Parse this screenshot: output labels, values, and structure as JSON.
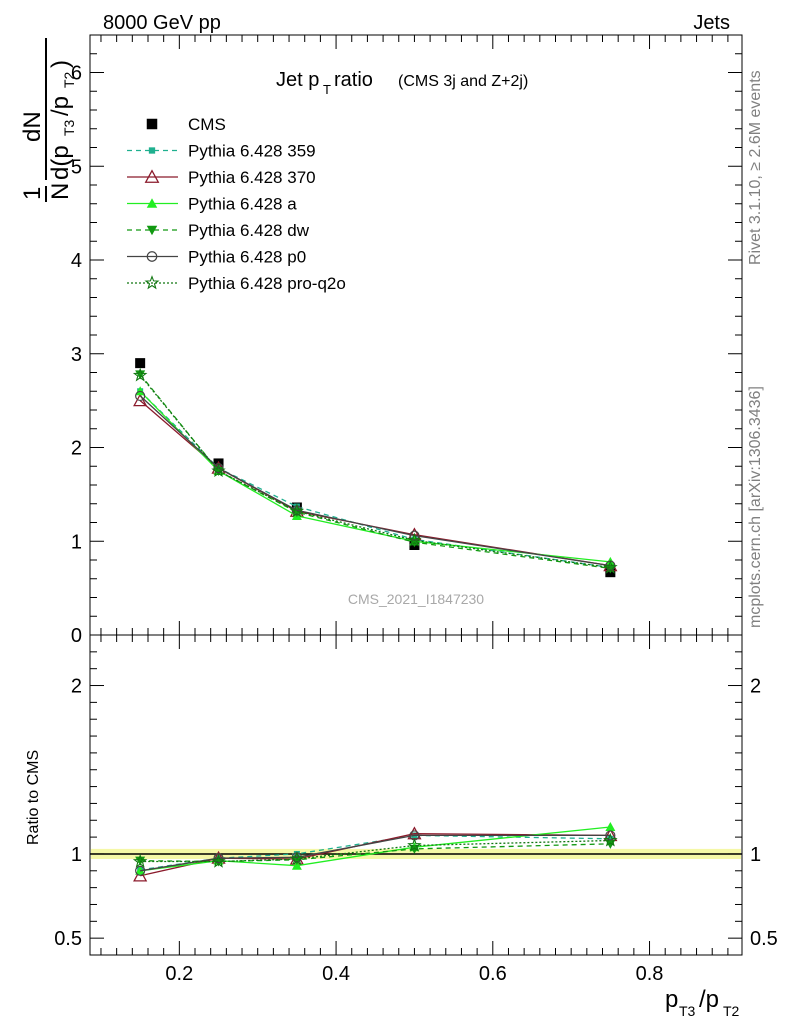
{
  "header": {
    "energy": "8000 GeV pp",
    "category": "Jets",
    "title_main": "Jet p",
    "title_sub": "T",
    "title_rest": " ratio",
    "title_note": "(CMS 3j and Z+2j)",
    "watermark": "CMS_2021_I1847230",
    "rivet_text": "Rivet 3.1.10, ≥ 2.6M events",
    "site_text": "mcplots.cern.ch [arXiv:1306.3436]"
  },
  "colors": {
    "CMS": "#000000",
    "Pythia 6.428 359": "#1fb08f",
    "Pythia 6.428 370": "#8b1a2b",
    "Pythia 6.428 a": "#22ee22",
    "Pythia 6.428 dw": "#119911",
    "Pythia 6.428 p0": "#444444",
    "Pythia 6.428 pro-q2o": "#117711",
    "band": "#f2f58a"
  },
  "chart_data": [
    {
      "type": "line",
      "panel": "main",
      "ylabel": "1/N dN/d(pT3/pT2)",
      "ylim": [
        0,
        6.4
      ],
      "xlim": [
        0.086,
        0.918
      ],
      "y_ticks": [
        0,
        1,
        2,
        3,
        4,
        5,
        6
      ],
      "x": [
        0.15,
        0.25,
        0.35,
        0.5,
        0.75
      ],
      "legend_position": "top-left",
      "series": [
        {
          "name": "CMS",
          "marker": "square",
          "values": [
            2.9,
            1.83,
            1.36,
            0.96,
            0.67
          ]
        },
        {
          "name": "Pythia 6.428 359",
          "marker": "small-square",
          "dash": "dashed",
          "values": [
            2.6,
            1.78,
            1.37,
            1.02,
            0.72
          ]
        },
        {
          "name": "Pythia 6.428 370",
          "marker": "open-triangle",
          "dash": "solid",
          "values": [
            2.5,
            1.78,
            1.32,
            1.07,
            0.74
          ]
        },
        {
          "name": "Pythia 6.428 a",
          "marker": "triangle",
          "dash": "solid",
          "values": [
            2.6,
            1.75,
            1.27,
            1.0,
            0.78
          ]
        },
        {
          "name": "Pythia 6.428 dw",
          "marker": "down-triangle",
          "dash": "dashed",
          "values": [
            2.78,
            1.75,
            1.31,
            0.99,
            0.71
          ]
        },
        {
          "name": "Pythia 6.428 p0",
          "marker": "open-circle",
          "dash": "solid",
          "values": [
            2.55,
            1.78,
            1.33,
            1.06,
            0.74
          ]
        },
        {
          "name": "Pythia 6.428 pro-q2o",
          "marker": "star",
          "dash": "dotted",
          "values": [
            2.77,
            1.75,
            1.32,
            1.01,
            0.72
          ]
        }
      ]
    },
    {
      "type": "line",
      "panel": "ratio",
      "ylabel": "Ratio to CMS",
      "xlabel": "pT3/pT2",
      "ylim": [
        0.4,
        2.3
      ],
      "xlim": [
        0.086,
        0.918
      ],
      "y_ticks": [
        0.5,
        1,
        2
      ],
      "x_ticks": [
        0.2,
        0.4,
        0.6,
        0.8
      ],
      "x": [
        0.15,
        0.25,
        0.35,
        0.5,
        0.75
      ],
      "reference": 1.0,
      "uncertainty_band": [
        0.03,
        0.03,
        0.03,
        0.03,
        0.03
      ],
      "series": [
        {
          "name": "Pythia 6.428 359",
          "values": [
            0.905,
            0.975,
            1.0,
            1.11,
            1.09
          ]
        },
        {
          "name": "Pythia 6.428 370",
          "values": [
            0.87,
            0.975,
            0.97,
            1.12,
            1.11
          ]
        },
        {
          "name": "Pythia 6.428 a",
          "values": [
            0.9,
            0.96,
            0.93,
            1.04,
            1.16
          ]
        },
        {
          "name": "Pythia 6.428 dw",
          "values": [
            0.96,
            0.955,
            0.965,
            1.03,
            1.06
          ]
        },
        {
          "name": "Pythia 6.428 p0",
          "values": [
            0.9,
            0.975,
            0.98,
            1.11,
            1.11
          ]
        },
        {
          "name": "Pythia 6.428 pro-q2o",
          "values": [
            0.955,
            0.955,
            0.97,
            1.05,
            1.08
          ]
        }
      ]
    }
  ]
}
